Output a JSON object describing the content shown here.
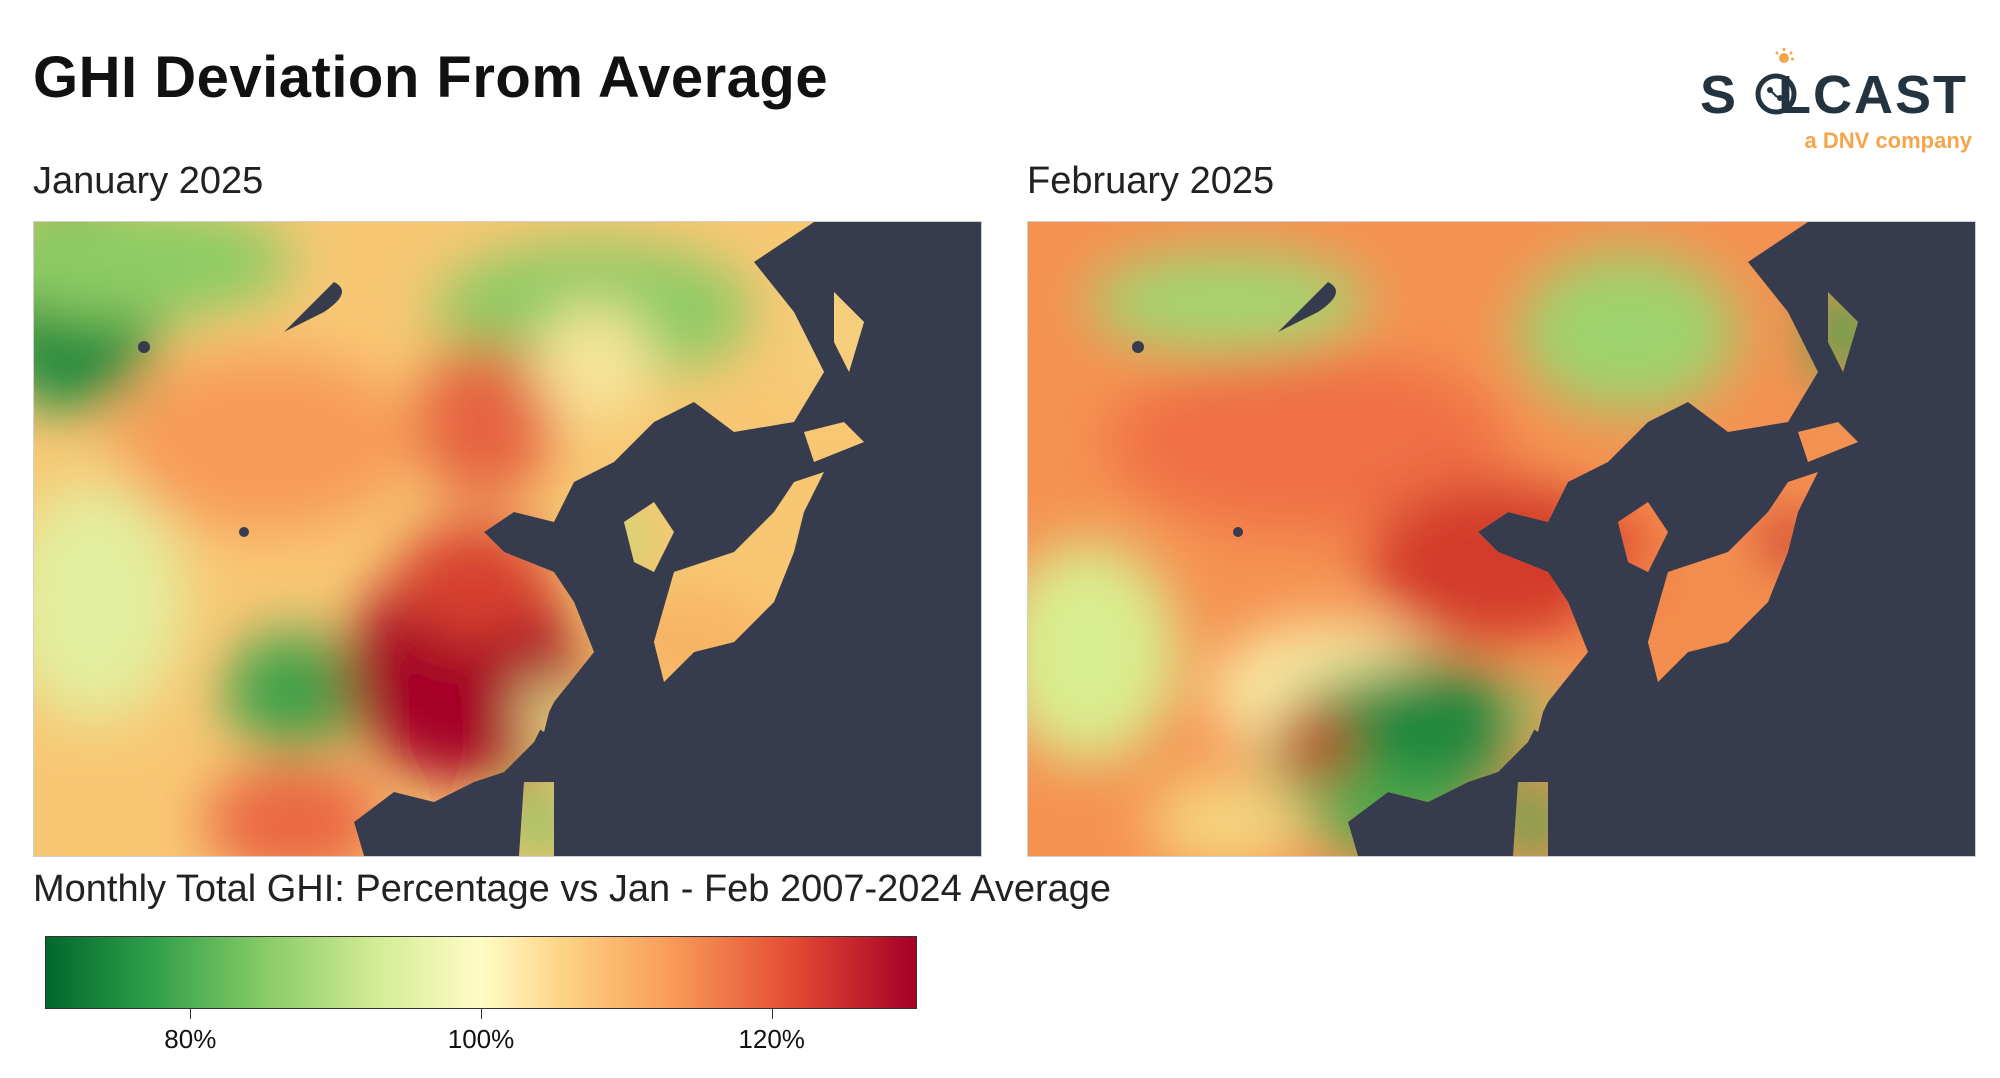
{
  "title": "GHI Deviation From Average",
  "logo": {
    "wordmark": "SOLCAST",
    "tagline": "a DNV company",
    "text_color": "#23333f",
    "accent_color": "#f5a64a"
  },
  "maps": [
    {
      "label": "January 2025"
    },
    {
      "label": "February 2025"
    }
  ],
  "colorbar": {
    "title": "Monthly Total GHI: Percentage vs Jan - Feb 2007-2024 Average",
    "colormap": "RdYlGn_r",
    "range": [
      70,
      130
    ],
    "ticks": [
      "80%",
      "100%",
      "120%"
    ],
    "tick_values": [
      80,
      100,
      120
    ]
  },
  "colors": {
    "ocean": "#373b4e",
    "very_low": "#00682d",
    "average": "#fffcc6",
    "very_high": "#a40026"
  }
}
